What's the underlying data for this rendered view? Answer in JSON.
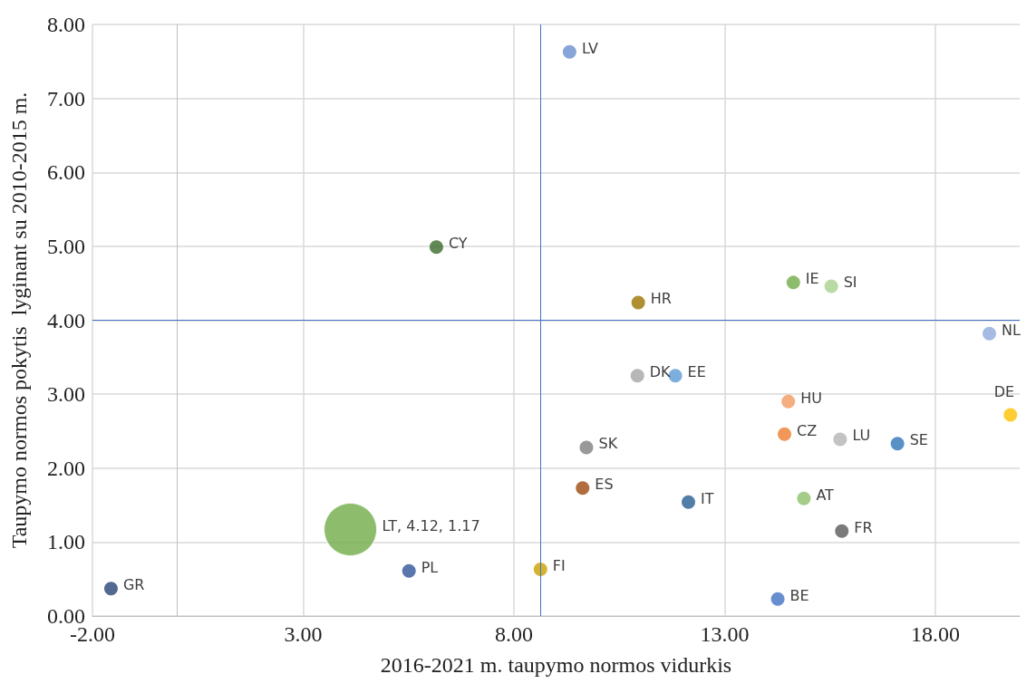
{
  "chart_data": {
    "type": "scatter",
    "xlabel": "2016-2021 m. taupymo normos vidurkis",
    "ylabel": "Taupymo normos pokytis  lyginant su 2010-2015 m.",
    "xlim": [
      -2,
      20
    ],
    "ylim": [
      0,
      8
    ],
    "xticks": [
      {
        "value": -2,
        "label": "-2.00"
      },
      {
        "value": 3,
        "label": "3.00"
      },
      {
        "value": 8,
        "label": "8.00"
      },
      {
        "value": 13,
        "label": "13.00"
      },
      {
        "value": 18,
        "label": "18.00"
      }
    ],
    "yticks": [
      {
        "value": 0,
        "label": "0.00"
      },
      {
        "value": 1,
        "label": "1.00"
      },
      {
        "value": 2,
        "label": "2.00"
      },
      {
        "value": 3,
        "label": "3.00"
      },
      {
        "value": 4,
        "label": "4.00"
      },
      {
        "value": 5,
        "label": "5.00"
      },
      {
        "value": 6,
        "label": "6.00"
      },
      {
        "value": 7,
        "label": "7.00"
      },
      {
        "value": 8,
        "label": "8.00"
      }
    ],
    "grid": true,
    "marker": "circle",
    "series": [
      {
        "type": "scatter",
        "x": [
          9.32,
          6.16,
          10.95,
          14.63,
          15.53,
          19.28,
          10.93,
          11.83,
          14.51,
          19.78,
          9.72,
          14.42,
          15.74,
          17.1,
          9.63,
          12.14,
          14.88,
          15.78,
          5.51,
          8.63,
          -1.56,
          14.26
        ],
        "values": [
          7.63,
          4.99,
          4.24,
          4.51,
          4.46,
          3.82,
          3.25,
          3.25,
          2.9,
          2.72,
          2.28,
          2.46,
          2.39,
          2.33,
          1.73,
          1.54,
          1.59,
          1.15,
          0.61,
          0.63,
          0.37,
          0.23
        ],
        "colors": [
          "#6a8fd0",
          "#3a6a2a",
          "#9a7400",
          "#70ad47",
          "#a9d18e",
          "#8faadc",
          "#a5a5a5",
          "#5b9bd5",
          "#f19a5f",
          "#ffc000",
          "#7f7f7f",
          "#ed7d31",
          "#b4b4b4",
          "#2e75b6",
          "#9e480e",
          "#255e91",
          "#8cc16a",
          "#595959",
          "#2f5597",
          "#c9a000",
          "#264478",
          "#4472c4"
        ]
      },
      {
        "type": "bubble",
        "x": [
          4.12
        ],
        "values": [
          1.17
        ],
        "sizes": [
          1
        ],
        "color": "#70ad47"
      }
    ],
    "ref_lines": [
      {
        "axis": "x",
        "value": 8.63,
        "color": "#4472c4"
      },
      {
        "axis": "y",
        "value": 4,
        "color": "#4472c4"
      }
    ],
    "annotations": [
      {
        "text": "LV",
        "x": 9.32,
        "y": 7.63
      },
      {
        "text": "CY",
        "x": 6.16,
        "y": 4.99
      },
      {
        "text": "HR",
        "x": 10.95,
        "y": 4.24
      },
      {
        "text": "IE",
        "x": 14.63,
        "y": 4.51
      },
      {
        "text": "SI",
        "x": 15.53,
        "y": 4.46
      },
      {
        "text": "NL",
        "x": 19.28,
        "y": 3.82
      },
      {
        "text": "DK",
        "x": 10.93,
        "y": 3.25
      },
      {
        "text": "EE",
        "x": 11.83,
        "y": 3.25
      },
      {
        "text": "HU",
        "x": 14.51,
        "y": 2.9
      },
      {
        "text": "DE",
        "x": 19.78,
        "y": 2.72
      },
      {
        "text": "SK",
        "x": 9.72,
        "y": 2.28
      },
      {
        "text": "CZ",
        "x": 14.42,
        "y": 2.46
      },
      {
        "text": "LU",
        "x": 15.74,
        "y": 2.39
      },
      {
        "text": "SE",
        "x": 17.1,
        "y": 2.33
      },
      {
        "text": "ES",
        "x": 9.63,
        "y": 1.73
      },
      {
        "text": "IT",
        "x": 12.14,
        "y": 1.54
      },
      {
        "text": "AT",
        "x": 14.88,
        "y": 1.59
      },
      {
        "text": "FR",
        "x": 15.78,
        "y": 1.15
      },
      {
        "text": "LT, 4.12, 1.17",
        "x": 4.12,
        "y": 1.17
      },
      {
        "text": "PL",
        "x": 5.51,
        "y": 0.61
      },
      {
        "text": "FI",
        "x": 8.63,
        "y": 0.63
      },
      {
        "text": "GR",
        "x": -1.56,
        "y": 0.37
      },
      {
        "text": "BE",
        "x": 14.26,
        "y": 0.23
      }
    ]
  }
}
